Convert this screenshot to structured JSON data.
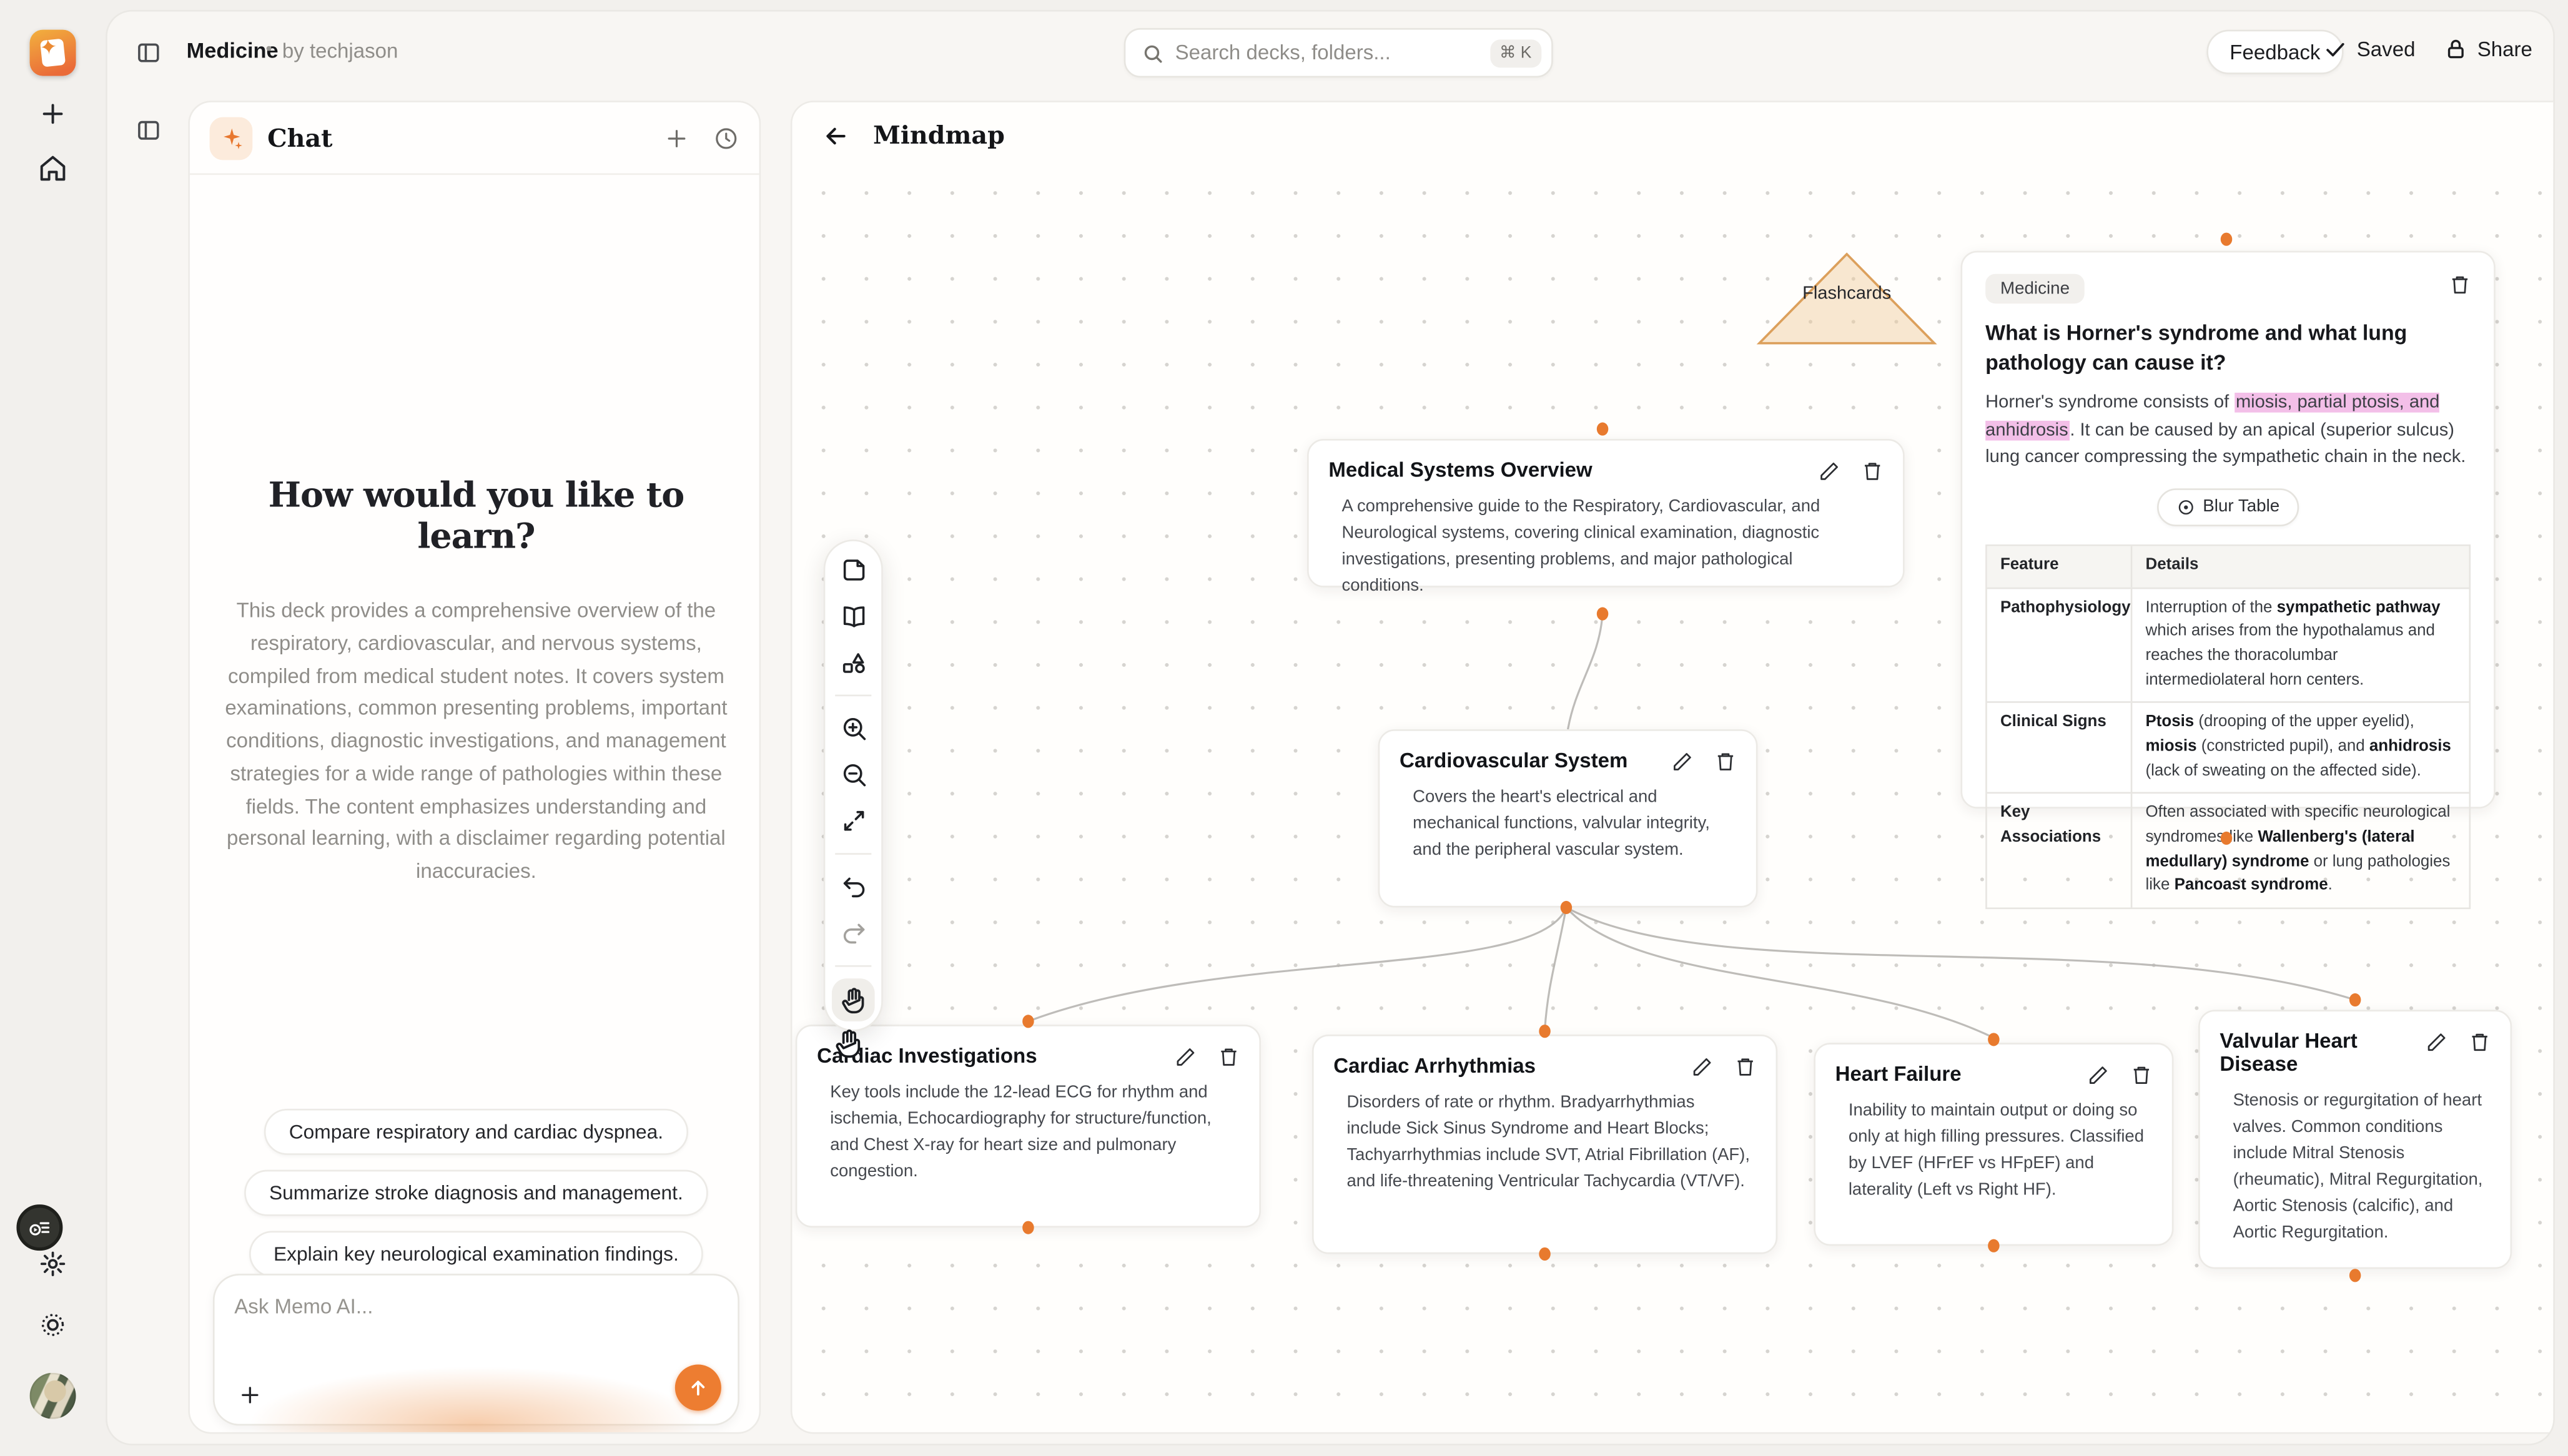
{
  "topbar": {
    "title": "Medicine",
    "separator": "•",
    "byline": "by techjason",
    "search_placeholder": "Search decks, folders...",
    "search_shortcut": "⌘ K",
    "feedback_label": "Feedback",
    "saved_label": "Saved",
    "share_label": "Share"
  },
  "chat": {
    "title": "Chat",
    "heading": "How would you like to learn?",
    "description": "This deck provides a comprehensive overview of the respiratory, cardiovascular, and nervous systems, compiled from medical student notes. It covers system examinations, common presenting problems, important conditions, diagnostic investigations, and management strategies for a wide range of pathologies within these fields. The content emphasizes understanding and personal learning, with a disclaimer regarding potential inaccuracies.",
    "suggestions": [
      "Compare respiratory and cardiac dyspnea.",
      "Summarize stroke diagnosis and management.",
      "Explain key neurological examination findings."
    ],
    "input_placeholder": "Ask Memo AI..."
  },
  "canvas": {
    "title": "Mindmap",
    "flashcards_label": "Flashcards"
  },
  "nodes": {
    "medicine": {
      "badge": "Medicine",
      "question": "What is Horner's syndrome and what lung pathology can cause it?",
      "answer_html": "Horner's syndrome consists of <mark>miosis, partial ptosis, and anhidrosis</mark>. It can be caused by an apical (superior sulcus) lung cancer compressing the sympathetic chain in the neck.",
      "blur_button_label": "Blur Table",
      "table": {
        "headers": [
          "Feature",
          "Details"
        ],
        "rows": [
          {
            "feature": "Pathophysiology",
            "details_html": "Interruption of the <b>sympathetic pathway</b> which arises from the hypothalamus and reaches the thoracolumbar intermediolateral horn centers."
          },
          {
            "feature": "Clinical Signs",
            "details_html": "<b>Ptosis</b> (drooping of the upper eyelid), <b>miosis</b> (constricted pupil), and <b>anhidrosis</b> (lack of sweating on the affected side)."
          },
          {
            "feature": "Key Associations",
            "details_html": "Often associated with specific neurological syndromes like <b>Wallenberg's (lateral medullary) syndrome</b> or lung pathologies like <b>Pancoast syndrome</b>."
          }
        ]
      }
    },
    "overview": {
      "title": "Medical Systems Overview",
      "body": "A comprehensive guide to the Respiratory, Cardiovascular, and Neurological systems, covering clinical examination, diagnostic investigations, presenting problems, and major pathological conditions."
    },
    "cardiovascular": {
      "title": "Cardiovascular System",
      "body": "Covers the heart's electrical and mechanical functions, valvular integrity, and the peripheral vascular system."
    },
    "investigations": {
      "title": "Cardiac Investigations",
      "body": "Key tools include the 12-lead ECG for rhythm and ischemia, Echocardiography for structure/function, and Chest X-ray for heart size and pulmonary congestion."
    },
    "arrhythmias": {
      "title": "Cardiac Arrhythmias",
      "body": "Disorders of rate or rhythm. Bradyarrhythmias include Sick Sinus Syndrome and Heart Blocks; Tachyarrhythmias include SVT, Atrial Fibrillation (AF), and life-threatening Ventricular Tachycardia (VT/VF)."
    },
    "heart_failure": {
      "title": "Heart Failure",
      "body": "Inability to maintain output or doing so only at high filling pressures. Classified by LVEF (HFrEF vs HFpEF) and laterality (Left vs Right HF)."
    },
    "valvular": {
      "title": "Valvular Heart Disease",
      "body": "Stenosis or regurgitation of heart valves. Common conditions include Mitral Stenosis (rheumatic), Mitral Regurgitation, Aortic Stenosis (calcific), and Aortic Regurgitation."
    }
  },
  "colors": {
    "accent": "#ed7d31",
    "connector_dot": "#e87a2e",
    "answer_highlight": "#f3bfe8",
    "triangle_border": "#dca05c"
  }
}
